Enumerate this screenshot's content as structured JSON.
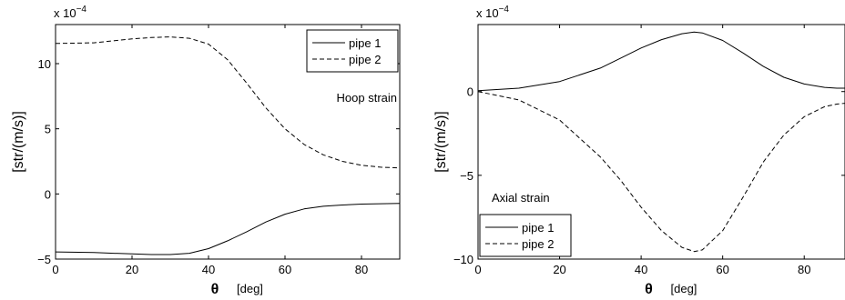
{
  "chart_data": [
    {
      "type": "line",
      "annotation": "Hoop strain",
      "xlabel": "θ",
      "xlabel_unit": "[deg]",
      "ylabel": "[str/(m/s)]",
      "multiplier_text": "x 10",
      "multiplier_exp": "−4",
      "xlim": [
        0,
        90
      ],
      "ylim": [
        -5,
        13
      ],
      "xticks": [
        "0",
        "20",
        "40",
        "60",
        "80"
      ],
      "xtick_values": [
        0,
        20,
        40,
        60,
        80
      ],
      "yticks": [
        "−5",
        "0",
        "5",
        "10"
      ],
      "ytick_values": [
        -5,
        0,
        5,
        10
      ],
      "legend_position": "top-right",
      "grid": false,
      "x": [
        0,
        10,
        20,
        25,
        30,
        35,
        40,
        45,
        50,
        55,
        60,
        65,
        70,
        75,
        80,
        85,
        90
      ],
      "series": [
        {
          "name": "pipe 1",
          "style": "solid",
          "values": [
            -4.45,
            -4.5,
            -4.6,
            -4.65,
            -4.65,
            -4.55,
            -4.2,
            -3.6,
            -2.9,
            -2.15,
            -1.55,
            -1.15,
            -0.95,
            -0.85,
            -0.78,
            -0.75,
            -0.72
          ]
        },
        {
          "name": "pipe 2",
          "style": "dashed",
          "values": [
            11.55,
            11.6,
            11.9,
            12.0,
            12.05,
            11.95,
            11.5,
            10.3,
            8.5,
            6.6,
            5.0,
            3.8,
            3.0,
            2.5,
            2.2,
            2.05,
            2.0
          ]
        }
      ]
    },
    {
      "type": "line",
      "annotation": "Axial strain",
      "xlabel": "θ",
      "xlabel_unit": "[deg]",
      "ylabel": "[str/(m/s)]",
      "multiplier_text": "x 10",
      "multiplier_exp": "−4",
      "xlim": [
        0,
        90
      ],
      "ylim": [
        -10,
        4
      ],
      "xticks": [
        "0",
        "20",
        "40",
        "60",
        "80"
      ],
      "xtick_values": [
        0,
        20,
        40,
        60,
        80
      ],
      "yticks": [
        "−10",
        "−5",
        "0"
      ],
      "ytick_values": [
        -10,
        -5,
        0
      ],
      "legend_position": "bottom-left",
      "grid": false,
      "x": [
        0,
        10,
        20,
        30,
        35,
        40,
        45,
        50,
        53,
        55,
        60,
        65,
        70,
        75,
        80,
        85,
        88,
        90
      ],
      "series": [
        {
          "name": "pipe 1",
          "style": "solid",
          "values": [
            0.05,
            0.2,
            0.6,
            1.4,
            2.0,
            2.6,
            3.1,
            3.45,
            3.55,
            3.5,
            3.05,
            2.3,
            1.5,
            0.85,
            0.45,
            0.25,
            0.2,
            0.2
          ]
        },
        {
          "name": "pipe 2",
          "style": "dashed",
          "values": [
            0.0,
            -0.5,
            -1.7,
            -3.9,
            -5.3,
            -6.9,
            -8.3,
            -9.3,
            -9.55,
            -9.45,
            -8.3,
            -6.3,
            -4.2,
            -2.6,
            -1.5,
            -0.9,
            -0.75,
            -0.7
          ]
        }
      ]
    }
  ]
}
